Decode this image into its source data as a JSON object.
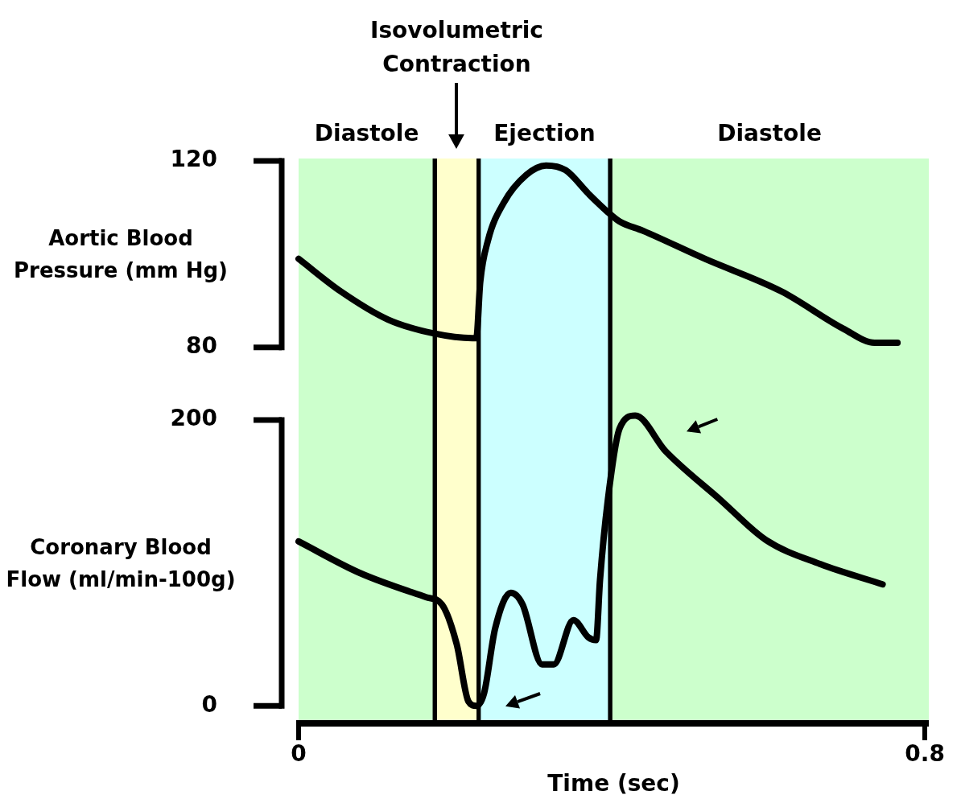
{
  "chart_data": [
    {
      "type": "line",
      "annotations": [
        "Isovolumetric Contraction"
      ],
      "ylabel": "Aortic Blood Pressure (mm Hg)",
      "xlim": [
        0,
        0.805
      ],
      "ylim": [
        66,
        120.5
      ],
      "yticks": [
        80,
        120
      ],
      "tick_labels": "y",
      "marker": "none",
      "x": [
        0,
        0.054,
        0.114,
        0.173,
        0.222,
        0.227,
        0.232,
        0.242,
        0.262,
        0.291,
        0.316,
        0.341,
        0.37,
        0.395,
        0.41,
        0.44,
        0.519,
        0.617,
        0.696,
        0.736,
        0.765
      ],
      "series": [
        {
          "color": "#000000",
          "values": [
            99,
            92,
            86,
            83,
            82,
            82,
            94,
            103,
            111,
            117,
            119,
            118,
            113,
            109,
            107,
            105,
            99,
            92,
            84,
            81,
            81
          ]
        }
      ],
      "bands": [
        {
          "axis": "x",
          "from": 0,
          "to": 0.174,
          "label": "Diastole",
          "color": "#ccffcc"
        },
        {
          "axis": "x",
          "from": 0.174,
          "to": 0.23,
          "color": "#ffffcc"
        },
        {
          "axis": "x",
          "from": 0.23,
          "to": 0.398,
          "label": "Ejection",
          "color": "#ccffff"
        },
        {
          "axis": "x",
          "from": 0.398,
          "to": 0.805,
          "label": "Diastole",
          "color": "#ccffcc"
        }
      ]
    },
    {
      "type": "line",
      "xlabel": "Time (sec)",
      "ylabel": "Coronary Blood Flow (ml/min-100g)",
      "xlim": [
        0,
        0.805
      ],
      "xticks": [
        0,
        0.8
      ],
      "ylim": [
        -10,
        205
      ],
      "yticks": [
        0,
        200
      ],
      "marker": "none",
      "x": [
        0,
        0.078,
        0.163,
        0.183,
        0.202,
        0.217,
        0.227,
        0.237,
        0.251,
        0.271,
        0.286,
        0.311,
        0.326,
        0.351,
        0.37,
        0.38,
        0.385,
        0.395,
        0.41,
        0.43,
        0.469,
        0.539,
        0.597,
        0.667,
        0.746
      ],
      "series": [
        {
          "color": "#000000",
          "values": [
            115,
            93,
            76,
            71,
            43,
            3,
            0,
            9,
            54,
            79,
            71,
            29,
            29,
            60,
            48,
            46,
            88,
            144,
            194,
            203,
            178,
            144,
            116,
            99,
            85
          ]
        }
      ],
      "bands": [
        {
          "axis": "x",
          "from": 0,
          "to": 0.174,
          "color": "#ccffcc"
        },
        {
          "axis": "x",
          "from": 0.174,
          "to": 0.23,
          "color": "#ffffcc"
        },
        {
          "axis": "x",
          "from": 0.23,
          "to": 0.398,
          "color": "#ccffff"
        },
        {
          "axis": "x",
          "from": 0.398,
          "to": 0.805,
          "color": "#ccffcc"
        }
      ]
    }
  ]
}
